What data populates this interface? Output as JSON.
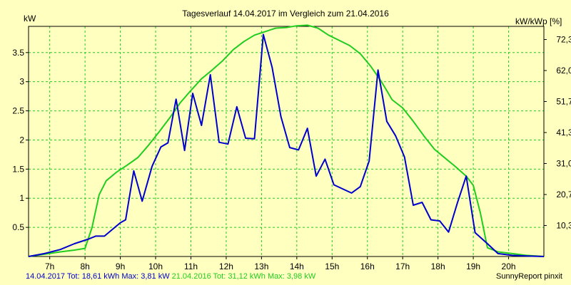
{
  "chart_data": {
    "type": "line",
    "title": "Tagesverlauf 14.04.2017 im Vergleich zum 21.04.2016",
    "ylabel_left": "kW",
    "ylabel_right": "kW/kWp [%]",
    "xlim": [
      6.4,
      21.0
    ],
    "ylim": [
      0,
      3.95
    ],
    "y_ticks": [
      0.5,
      1,
      1.5,
      2,
      2.5,
      3,
      3.5
    ],
    "y_tick_labels": [
      "0.5",
      "1",
      "1.5",
      "2",
      "2.5",
      "3",
      "3.5"
    ],
    "x_ticks": [
      7,
      8,
      9,
      10,
      11,
      12,
      13,
      14,
      15,
      16,
      17,
      18,
      19,
      20
    ],
    "x_tick_labels": [
      "7h",
      "8h",
      "9h",
      "10h",
      "11h",
      "12h",
      "13h",
      "14h",
      "15h",
      "16h",
      "17h",
      "18h",
      "19h",
      "20h"
    ],
    "y2_ticks": [
      0.532,
      1.064,
      1.596,
      2.128,
      2.66,
      3.192,
      3.724
    ],
    "y2_tick_labels": [
      "10,3",
      "20,7",
      "31,0",
      "41,3",
      "51,7",
      "62,0",
      "72,3"
    ],
    "grid": true,
    "series": [
      {
        "name": "14.04.2017",
        "color": "#0000CC",
        "points": [
          [
            6.4,
            0
          ],
          [
            6.85,
            0.05
          ],
          [
            7.3,
            0.12
          ],
          [
            7.7,
            0.22
          ],
          [
            8.1,
            0.3
          ],
          [
            8.3,
            0.35
          ],
          [
            8.55,
            0.35
          ],
          [
            9.0,
            0.58
          ],
          [
            9.15,
            0.63
          ],
          [
            9.38,
            1.47
          ],
          [
            9.62,
            0.95
          ],
          [
            9.9,
            1.55
          ],
          [
            10.15,
            1.88
          ],
          [
            10.35,
            1.95
          ],
          [
            10.58,
            2.7
          ],
          [
            10.82,
            1.82
          ],
          [
            11.05,
            2.8
          ],
          [
            11.3,
            2.25
          ],
          [
            11.55,
            3.12
          ],
          [
            11.8,
            1.96
          ],
          [
            12.05,
            1.93
          ],
          [
            12.3,
            2.57
          ],
          [
            12.55,
            2.03
          ],
          [
            12.8,
            2.02
          ],
          [
            13.05,
            3.81
          ],
          [
            13.3,
            3.25
          ],
          [
            13.55,
            2.4
          ],
          [
            13.8,
            1.87
          ],
          [
            14.05,
            1.83
          ],
          [
            14.3,
            2.2
          ],
          [
            14.55,
            1.38
          ],
          [
            14.8,
            1.67
          ],
          [
            15.05,
            1.23
          ],
          [
            15.3,
            1.16
          ],
          [
            15.55,
            1.09
          ],
          [
            15.8,
            1.2
          ],
          [
            16.05,
            1.64
          ],
          [
            16.3,
            3.2
          ],
          [
            16.55,
            2.32
          ],
          [
            16.8,
            2.07
          ],
          [
            17.05,
            1.71
          ],
          [
            17.3,
            0.88
          ],
          [
            17.55,
            0.93
          ],
          [
            17.8,
            0.63
          ],
          [
            18.05,
            0.61
          ],
          [
            18.3,
            0.42
          ],
          [
            18.55,
            0.92
          ],
          [
            18.8,
            1.38
          ],
          [
            19.05,
            0.41
          ],
          [
            19.4,
            0.22
          ],
          [
            19.7,
            0.05
          ],
          [
            20.1,
            0.02
          ],
          [
            20.5,
            0.01
          ],
          [
            21.0,
            0
          ]
        ]
      },
      {
        "name": "21.04.2016",
        "color": "#20CC20",
        "points": [
          [
            6.4,
            0
          ],
          [
            6.85,
            0.04
          ],
          [
            7.3,
            0.08
          ],
          [
            7.7,
            0.11
          ],
          [
            8.0,
            0.14
          ],
          [
            8.2,
            0.5
          ],
          [
            8.4,
            1.06
          ],
          [
            8.6,
            1.3
          ],
          [
            8.9,
            1.45
          ],
          [
            9.2,
            1.57
          ],
          [
            9.5,
            1.7
          ],
          [
            9.8,
            1.91
          ],
          [
            10.1,
            2.14
          ],
          [
            10.4,
            2.38
          ],
          [
            10.7,
            2.64
          ],
          [
            11.0,
            2.85
          ],
          [
            11.3,
            3.05
          ],
          [
            11.6,
            3.2
          ],
          [
            11.9,
            3.36
          ],
          [
            12.2,
            3.55
          ],
          [
            12.5,
            3.69
          ],
          [
            12.8,
            3.8
          ],
          [
            13.1,
            3.86
          ],
          [
            13.4,
            3.92
          ],
          [
            13.7,
            3.93
          ],
          [
            14.0,
            3.96
          ],
          [
            14.3,
            3.97
          ],
          [
            14.6,
            3.92
          ],
          [
            14.9,
            3.8
          ],
          [
            15.2,
            3.71
          ],
          [
            15.5,
            3.62
          ],
          [
            15.8,
            3.48
          ],
          [
            16.1,
            3.26
          ],
          [
            16.4,
            3.0
          ],
          [
            16.7,
            2.69
          ],
          [
            17.0,
            2.55
          ],
          [
            17.3,
            2.32
          ],
          [
            17.6,
            2.07
          ],
          [
            17.9,
            1.84
          ],
          [
            18.2,
            1.69
          ],
          [
            18.5,
            1.54
          ],
          [
            18.8,
            1.38
          ],
          [
            19.0,
            1.22
          ],
          [
            19.2,
            0.75
          ],
          [
            19.4,
            0.15
          ],
          [
            19.7,
            0.08
          ],
          [
            20.1,
            0.05
          ],
          [
            20.5,
            0.02
          ],
          [
            21.0,
            0
          ]
        ]
      }
    ]
  },
  "footer": {
    "series1_label": "14.04.2017 Tot: 18,61 kWh Max: 3,81 kW",
    "series2_label": "21.04.2016 Tot: 31,12 kWh Max: 3,98 kW",
    "credit": "SunnyReport pinxit"
  }
}
